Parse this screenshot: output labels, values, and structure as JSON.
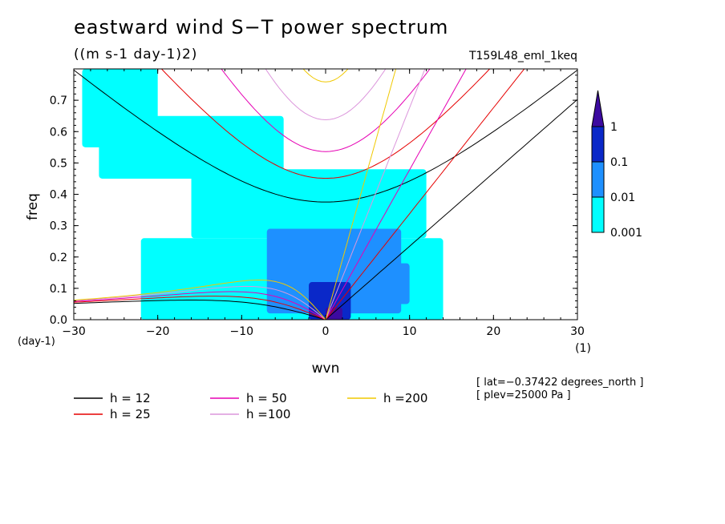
{
  "header": {
    "title": "eastward wind S−T power spectrum",
    "units": "((m s-1 day-1)2)",
    "run_id": "T159L48_eml_1keq"
  },
  "meta": {
    "lat": "[ lat=−0.37422 degrees_north ]",
    "plev": "[ plev=25000 Pa ]"
  },
  "chart_data": {
    "type": "heatmap",
    "title": "eastward wind S−T power spectrum",
    "units": "((m s-1 day-1)2)",
    "xlabel": "wvn",
    "xunit": "(1)",
    "ylabel": "freq",
    "yunit": "(day-1)",
    "xlim": [
      -30,
      30
    ],
    "ylim": [
      0,
      0.8
    ],
    "xticks": [
      -30,
      -20,
      -10,
      0,
      10,
      20,
      30
    ],
    "xtick_labels": [
      "−30",
      "−20",
      "−10",
      "0",
      "10",
      "20",
      "30"
    ],
    "yticks": [
      0.0,
      0.1,
      0.2,
      0.3,
      0.4,
      0.5,
      0.6,
      0.7
    ],
    "ytick_labels": [
      "0.0",
      "0.1",
      "0.2",
      "0.3",
      "0.4",
      "0.5",
      "0.6",
      "0.7"
    ],
    "colorbar": {
      "levels": [
        "0.001",
        "0.01",
        "0.1",
        "1"
      ],
      "colors": [
        "#00ffff",
        "#1e90ff",
        "#0a28c8",
        "#3c0aa0"
      ]
    },
    "shaded_regions": [
      {
        "level": 0.001,
        "x": [
          -29,
          -20
        ],
        "y": [
          0.55,
          0.8
        ]
      },
      {
        "level": 0.001,
        "x": [
          -16,
          12
        ],
        "y": [
          0.26,
          0.48
        ]
      },
      {
        "level": 0.001,
        "x": [
          -22,
          14
        ],
        "y": [
          0.0,
          0.26
        ]
      },
      {
        "level": 0.001,
        "x": [
          -27,
          -5
        ],
        "y": [
          0.45,
          0.65
        ]
      },
      {
        "level": 0.01,
        "x": [
          -7,
          9
        ],
        "y": [
          0.02,
          0.29
        ]
      },
      {
        "level": 0.01,
        "x": [
          6,
          10
        ],
        "y": [
          0.05,
          0.18
        ]
      },
      {
        "level": 0.1,
        "x": [
          -2,
          3
        ],
        "y": [
          0.0,
          0.12
        ]
      },
      {
        "level": 1,
        "x": [
          0,
          2
        ],
        "y": [
          0.0,
          0.04
        ]
      }
    ],
    "legend": {
      "entries": [
        {
          "label": "h = 12",
          "color": "#000000"
        },
        {
          "label": "h = 25",
          "color": "#e60000"
        },
        {
          "label": "h = 50",
          "color": "#e600b4"
        },
        {
          "label": "h =100",
          "color": "#dc96dc"
        },
        {
          "label": "h =200",
          "color": "#f0c800"
        }
      ],
      "placement": "bottom"
    },
    "dispersion_curves": [
      {
        "h": 12,
        "color": "#000000"
      },
      {
        "h": 25,
        "color": "#e60000"
      },
      {
        "h": 50,
        "color": "#e600b4"
      },
      {
        "h": 100,
        "color": "#dc96dc"
      },
      {
        "h": 200,
        "color": "#f0c800"
      }
    ]
  }
}
